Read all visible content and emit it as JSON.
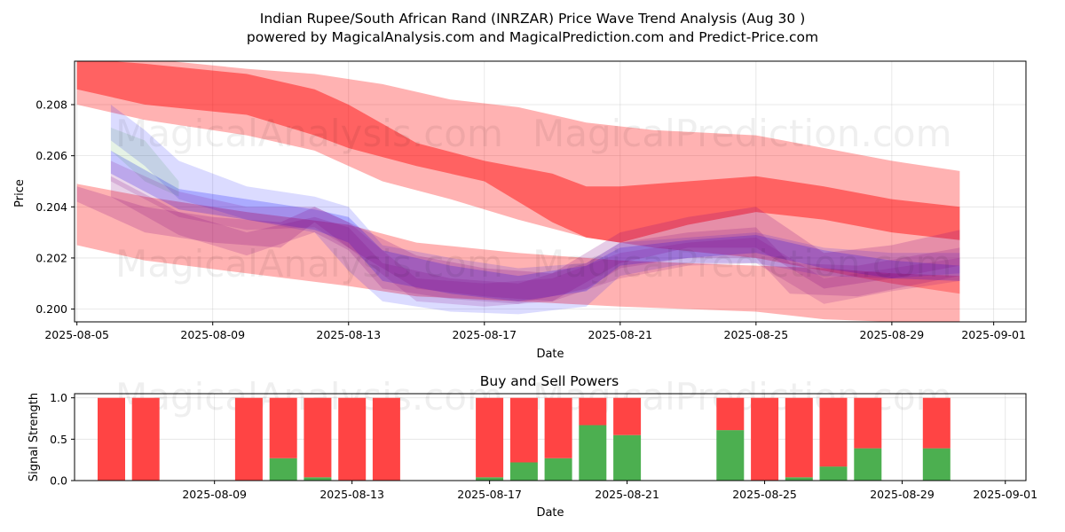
{
  "title_line1": "Indian Rupee/South African Rand (INRZAR) Price Wave Trend Analysis (Aug 30 )",
  "title_line2": "powered by MagicalAnalysis.com and MagicalPrediction.com and Predict-Price.com",
  "watermarks": [
    "MagicalAnalysis.com",
    "MagicalPrediction.com"
  ],
  "colors": {
    "red": "#ff0000",
    "blue": "#0000ff",
    "purple": "#800080",
    "green": "#008000",
    "sell": "#ff4444",
    "buy": "#4caf50"
  },
  "chart_data": [
    {
      "type": "area",
      "title": "",
      "xlabel": "Date",
      "ylabel": "Price",
      "xlim": [
        "2025-08-05",
        "2025-09-01"
      ],
      "ylim": [
        0.1995,
        0.2097
      ],
      "yticks": [
        "0.200",
        "0.202",
        "0.204",
        "0.206",
        "0.208"
      ],
      "xticks": [
        "2025-08-05",
        "2025-08-09",
        "2025-08-13",
        "2025-08-17",
        "2025-08-21",
        "2025-08-25",
        "2025-08-29",
        "2025-09-01"
      ],
      "grid": true,
      "bands": [
        {
          "name": "red-upper",
          "color": "red",
          "opacity": 0.3,
          "x": [
            "2025-08-05",
            "2025-08-07",
            "2025-08-10",
            "2025-08-12",
            "2025-08-14",
            "2025-08-16",
            "2025-08-18",
            "2025-08-20",
            "2025-08-22",
            "2025-08-25",
            "2025-08-27",
            "2025-08-29",
            "2025-08-31"
          ],
          "upper": [
            0.21,
            0.2098,
            0.2094,
            0.2092,
            0.2088,
            0.2082,
            0.2079,
            0.2073,
            0.207,
            0.2068,
            0.2063,
            0.2058,
            0.2054
          ],
          "lower": [
            0.208,
            0.2074,
            0.2068,
            0.2062,
            0.205,
            0.2043,
            0.2035,
            0.2028,
            0.2024,
            0.202,
            0.2015,
            0.201,
            0.2006
          ]
        },
        {
          "name": "red-main",
          "color": "red",
          "opacity": 0.45,
          "x": [
            "2025-08-05",
            "2025-08-07",
            "2025-08-10",
            "2025-08-12",
            "2025-08-13",
            "2025-08-15",
            "2025-08-17",
            "2025-08-19",
            "2025-08-20",
            "2025-08-21",
            "2025-08-23",
            "2025-08-25",
            "2025-08-27",
            "2025-08-29",
            "2025-08-31"
          ],
          "upper": [
            0.2098,
            0.2096,
            0.2092,
            0.2086,
            0.208,
            0.2065,
            0.2058,
            0.2053,
            0.2048,
            0.2048,
            0.205,
            0.2052,
            0.2048,
            0.2043,
            0.204
          ],
          "lower": [
            0.2086,
            0.208,
            0.2076,
            0.2068,
            0.2063,
            0.2056,
            0.205,
            0.2034,
            0.2028,
            0.2026,
            0.2033,
            0.2038,
            0.2035,
            0.203,
            0.2027
          ]
        },
        {
          "name": "red-lower",
          "color": "red",
          "opacity": 0.3,
          "x": [
            "2025-08-05",
            "2025-08-07",
            "2025-08-10",
            "2025-08-13",
            "2025-08-15",
            "2025-08-18",
            "2025-08-21",
            "2025-08-25",
            "2025-08-27",
            "2025-08-29",
            "2025-08-31"
          ],
          "upper": [
            0.2049,
            0.2044,
            0.2038,
            0.2033,
            0.2026,
            0.2022,
            0.2019,
            0.2017,
            0.2016,
            0.2014,
            0.2013
          ],
          "lower": [
            0.2025,
            0.2019,
            0.2014,
            0.2009,
            0.2005,
            0.2003,
            0.2001,
            0.1999,
            0.1996,
            0.1995,
            0.1994
          ]
        },
        {
          "name": "blue-1",
          "color": "blue",
          "opacity": 0.14,
          "x": [
            "2025-08-06",
            "2025-08-07",
            "2025-08-08",
            "2025-08-10",
            "2025-08-12",
            "2025-08-13",
            "2025-08-14",
            "2025-08-16",
            "2025-08-18",
            "2025-08-20",
            "2025-08-21",
            "2025-08-23",
            "2025-08-25",
            "2025-08-27",
            "2025-08-29",
            "2025-08-31"
          ],
          "upper": [
            0.208,
            0.207,
            0.2058,
            0.2048,
            0.2044,
            0.204,
            0.2025,
            0.202,
            0.2016,
            0.2018,
            0.2026,
            0.2028,
            0.203,
            0.2024,
            0.2022,
            0.2022
          ],
          "lower": [
            0.2066,
            0.2056,
            0.2043,
            0.2035,
            0.203,
            0.2015,
            0.2003,
            0.1999,
            0.1998,
            0.2001,
            0.2013,
            0.2018,
            0.2018,
            0.2013,
            0.2012,
            0.2014
          ]
        },
        {
          "name": "blue-2",
          "color": "blue",
          "opacity": 0.22,
          "x": [
            "2025-08-06",
            "2025-08-08",
            "2025-08-10",
            "2025-08-12",
            "2025-08-13",
            "2025-08-14",
            "2025-08-16",
            "2025-08-18",
            "2025-08-20",
            "2025-08-21",
            "2025-08-23",
            "2025-08-25",
            "2025-08-27",
            "2025-08-29",
            "2025-08-31"
          ],
          "upper": [
            0.2062,
            0.2047,
            0.2043,
            0.2039,
            0.2036,
            0.2023,
            0.2017,
            0.2013,
            0.2017,
            0.2024,
            0.2027,
            0.2029,
            0.2023,
            0.2019,
            0.2017
          ],
          "lower": [
            0.2053,
            0.2039,
            0.2035,
            0.2031,
            0.2026,
            0.2011,
            0.2006,
            0.2003,
            0.2007,
            0.2017,
            0.202,
            0.2022,
            0.2016,
            0.2012,
            0.2011
          ]
        },
        {
          "name": "green-spike",
          "color": "green",
          "opacity": 0.1,
          "x": [
            "2025-08-06",
            "2025-08-06",
            "2025-08-07",
            "2025-08-08"
          ],
          "upper": [
            0.2065,
            0.2071,
            0.2066,
            0.205
          ],
          "lower": [
            0.206,
            0.2062,
            0.205,
            0.2044
          ]
        },
        {
          "name": "purple-1",
          "color": "purple",
          "opacity": 0.2,
          "x": [
            "2025-08-05",
            "2025-08-07",
            "2025-08-09",
            "2025-08-11",
            "2025-08-12",
            "2025-08-13",
            "2025-08-15",
            "2025-08-17",
            "2025-08-19",
            "2025-08-21",
            "2025-08-23",
            "2025-08-25",
            "2025-08-27",
            "2025-08-29",
            "2025-08-31"
          ],
          "upper": [
            0.2048,
            0.204,
            0.2036,
            0.2034,
            0.204,
            0.2034,
            0.2021,
            0.2016,
            0.2014,
            0.203,
            0.2036,
            0.204,
            0.2022,
            0.2025,
            0.2031
          ],
          "lower": [
            0.2042,
            0.203,
            0.2026,
            0.2024,
            0.2034,
            0.2024,
            0.2008,
            0.2005,
            0.2003,
            0.2018,
            0.2024,
            0.2024,
            0.2008,
            0.2012,
            0.2017
          ]
        },
        {
          "name": "purple-2",
          "color": "purple",
          "opacity": 0.18,
          "x": [
            "2025-08-06",
            "2025-08-08",
            "2025-08-10",
            "2025-08-12",
            "2025-08-13",
            "2025-08-14",
            "2025-08-16",
            "2025-08-18",
            "2025-08-20",
            "2025-08-21",
            "2025-08-23",
            "2025-08-25",
            "2025-08-26",
            "2025-08-28",
            "2025-08-31"
          ],
          "upper": [
            0.2052,
            0.2038,
            0.203,
            0.2036,
            0.2032,
            0.2018,
            0.2012,
            0.201,
            0.2018,
            0.2026,
            0.203,
            0.2032,
            0.2018,
            0.2017,
            0.2024
          ],
          "lower": [
            0.2044,
            0.2029,
            0.2021,
            0.203,
            0.2023,
            0.2008,
            0.2004,
            0.2002,
            0.2008,
            0.2016,
            0.202,
            0.202,
            0.2006,
            0.2005,
            0.2013
          ]
        },
        {
          "name": "purple-3",
          "color": "purple",
          "opacity": 0.16,
          "x": [
            "2025-08-06",
            "2025-08-08",
            "2025-08-10",
            "2025-08-12",
            "2025-08-13",
            "2025-08-15",
            "2025-08-17",
            "2025-08-19",
            "2025-08-21",
            "2025-08-23",
            "2025-08-25",
            "2025-08-27",
            "2025-08-29",
            "2025-08-31"
          ],
          "upper": [
            0.2058,
            0.2046,
            0.204,
            0.204,
            0.2034,
            0.2012,
            0.201,
            0.2012,
            0.2022,
            0.2026,
            0.2028,
            0.2012,
            0.2016,
            0.202
          ],
          "lower": [
            0.205,
            0.2036,
            0.2031,
            0.2032,
            0.2024,
            0.2003,
            0.2001,
            0.2003,
            0.2012,
            0.2017,
            0.2018,
            0.2002,
            0.2007,
            0.2011
          ]
        }
      ]
    },
    {
      "type": "bar",
      "title": "Buy and Sell Powers",
      "xlabel": "Date",
      "ylabel": "Signal Strength",
      "xlim": [
        "2025-08-05",
        "2025-09-01"
      ],
      "ylim": [
        0,
        1.05
      ],
      "yticks": [
        "0.0",
        "0.5",
        "1.0"
      ],
      "xticks": [
        "2025-08-09",
        "2025-08-13",
        "2025-08-17",
        "2025-08-21",
        "2025-08-25",
        "2025-08-29",
        "2025-09-01"
      ],
      "grid": true,
      "categories": [
        "2025-08-06",
        "2025-08-07",
        "2025-08-10",
        "2025-08-11",
        "2025-08-12",
        "2025-08-13",
        "2025-08-14",
        "2025-08-17",
        "2025-08-18",
        "2025-08-19",
        "2025-08-20",
        "2025-08-21",
        "2025-08-24",
        "2025-08-25",
        "2025-08-26",
        "2025-08-27",
        "2025-08-28",
        "2025-08-30"
      ],
      "series": [
        {
          "name": "Buy",
          "values": [
            0,
            0,
            0,
            0.27,
            0.04,
            0,
            0,
            0.04,
            0.22,
            0.27,
            0.67,
            0.55,
            0.61,
            0,
            0.04,
            0.17,
            0.39,
            0.39
          ]
        },
        {
          "name": "Sell",
          "values": [
            1,
            1,
            1,
            0.73,
            0.96,
            1,
            1,
            0.96,
            0.78,
            0.73,
            0.33,
            0.45,
            0.39,
            1,
            0.96,
            0.83,
            0.61,
            0.61
          ]
        }
      ]
    }
  ]
}
